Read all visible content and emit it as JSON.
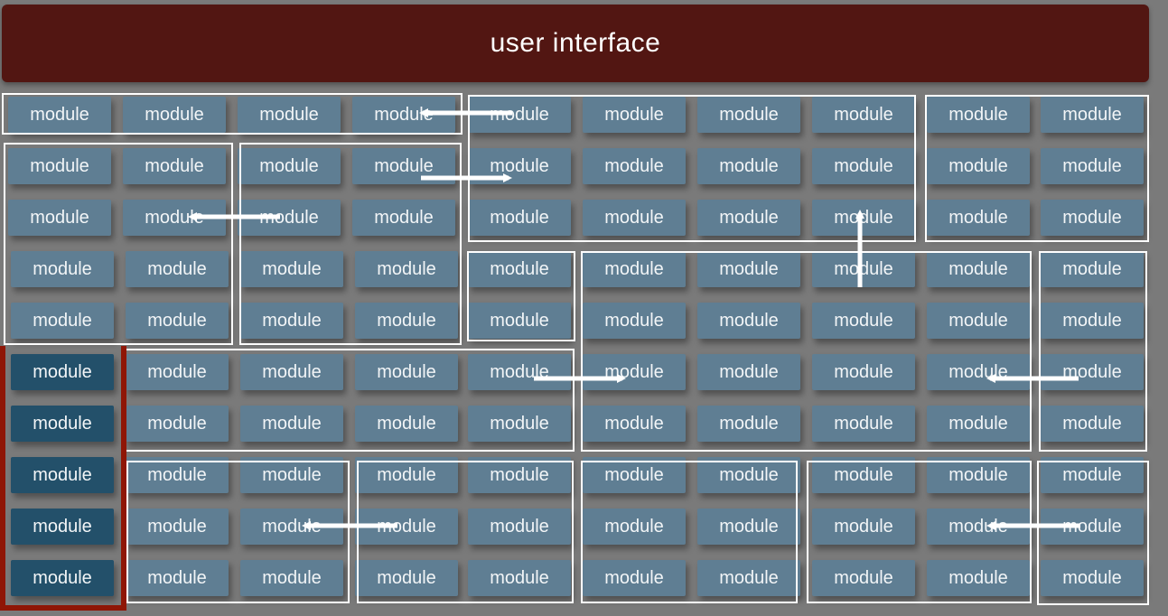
{
  "header": {
    "title": "user interface"
  },
  "module_label": "module",
  "colors": {
    "background": "#7a7a7a",
    "header": "#521612",
    "module": "#5f7e93",
    "module_highlight": "#23506a",
    "group_border": "#ffffff",
    "highlight_border": "#8f1606",
    "arrow": "#ffffff"
  },
  "grid": {
    "rows": 10,
    "columns": 10
  },
  "highlighted_column": 0,
  "arrow_count": 9
}
